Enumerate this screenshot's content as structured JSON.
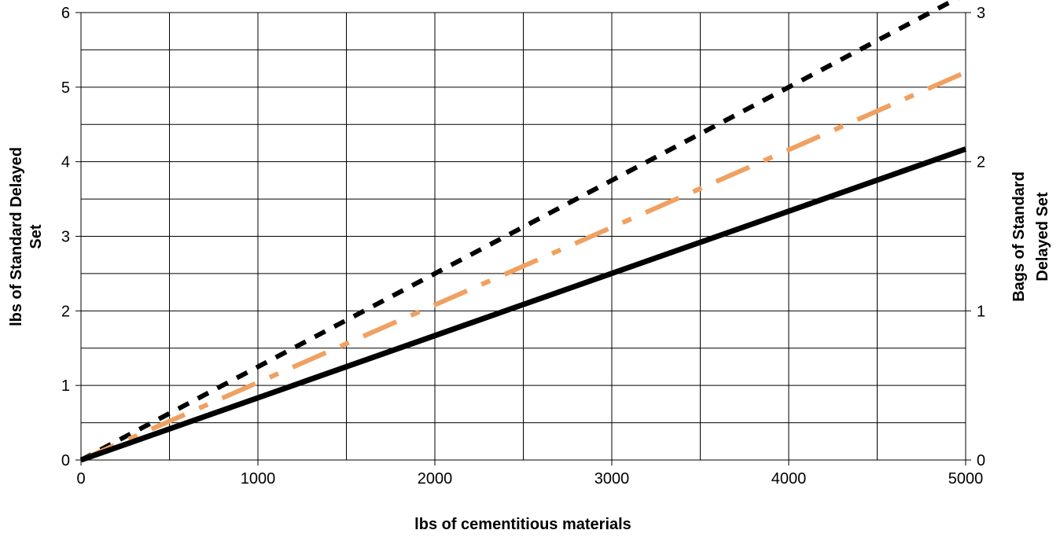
{
  "chart_data": {
    "type": "line",
    "title": "",
    "xlabel": "lbs of cementitious materials",
    "ylabel_lines": [
      "lbs of Standard Delayed",
      "Set"
    ],
    "y2label_lines": [
      "Bags of Standard",
      "Delayed Set"
    ],
    "xlim": [
      0,
      5000
    ],
    "ylim": [
      0,
      6
    ],
    "y2lim": [
      0,
      3
    ],
    "x_ticks": [
      0,
      1000,
      2000,
      3000,
      4000,
      5000
    ],
    "y_ticks": [
      0,
      1,
      2,
      3,
      4,
      5,
      6
    ],
    "y2_ticks": [
      0,
      1,
      2,
      3
    ],
    "x_minor_step": 500,
    "y_minor_step": 0.5,
    "grid": true,
    "legend": "none",
    "series": [
      {
        "style": "dashed-short",
        "color": "#000000",
        "x": [
          0,
          5000
        ],
        "y": [
          0,
          6.25
        ]
      },
      {
        "style": "dashed-long",
        "color": "#F0A060",
        "x": [
          0,
          5000
        ],
        "y": [
          0,
          5.2
        ]
      },
      {
        "style": "solid",
        "color": "#000000",
        "x": [
          0,
          5000
        ],
        "y": [
          0,
          4.17
        ]
      }
    ]
  }
}
